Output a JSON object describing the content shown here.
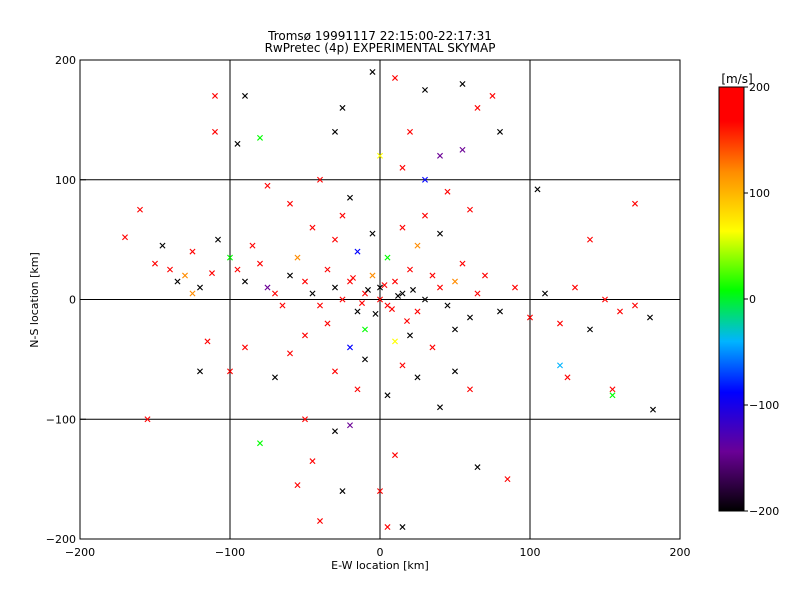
{
  "chart_data": {
    "type": "scatter",
    "title": "Tromsø 19991117 22:15:00-22:17:31",
    "subtitle": "RwPretec (4p) EXPERIMENTAL SKYMAP",
    "xlabel": "E-W location [km]",
    "ylabel": "N-S location [km]",
    "xlim": [
      -200,
      200
    ],
    "ylim": [
      -200,
      200
    ],
    "xticks": [
      -200,
      -100,
      0,
      100,
      200
    ],
    "yticks": [
      -200,
      -100,
      0,
      100,
      200
    ],
    "xtick_labels": [
      "−200",
      "−100",
      "0",
      "100",
      "200"
    ],
    "ytick_labels": [
      "−200",
      "−100",
      "0",
      "100",
      "200"
    ],
    "grid": true,
    "marker": "x",
    "colorbar": {
      "label": "[m/s]",
      "min": -200,
      "max": 200,
      "ticks": [
        -200,
        -100,
        0,
        100,
        200
      ],
      "tick_labels": [
        "−200",
        "−100",
        "0",
        "100",
        "200"
      ],
      "colors": [
        "#000000",
        "#6a0096",
        "#0000ff",
        "#00b4ff",
        "#00ff00",
        "#ffff00",
        "#ff8c00",
        "#ff0000"
      ]
    },
    "points": [
      {
        "x": -170,
        "y": 52,
        "v": 180
      },
      {
        "x": -160,
        "y": 75,
        "v": 190
      },
      {
        "x": -145,
        "y": 45,
        "v": -200
      },
      {
        "x": -150,
        "y": 30,
        "v": 180
      },
      {
        "x": -140,
        "y": 25,
        "v": 185
      },
      {
        "x": -135,
        "y": 15,
        "v": -190
      },
      {
        "x": -130,
        "y": 20,
        "v": 170
      },
      {
        "x": -125,
        "y": 40,
        "v": 175
      },
      {
        "x": -120,
        "y": 10,
        "v": -200
      },
      {
        "x": -112,
        "y": 22,
        "v": 180
      },
      {
        "x": -108,
        "y": 50,
        "v": -200
      },
      {
        "x": -100,
        "y": 35,
        "v": 20
      },
      {
        "x": -95,
        "y": 25,
        "v": 195
      },
      {
        "x": -90,
        "y": 15,
        "v": -200
      },
      {
        "x": -85,
        "y": 45,
        "v": 190
      },
      {
        "x": -80,
        "y": 30,
        "v": 180
      },
      {
        "x": -75,
        "y": 10,
        "v": -150
      },
      {
        "x": -70,
        "y": 5,
        "v": 190
      },
      {
        "x": -65,
        "y": -5,
        "v": 185
      },
      {
        "x": -60,
        "y": 20,
        "v": -200
      },
      {
        "x": -55,
        "y": 35,
        "v": 170
      },
      {
        "x": -50,
        "y": 15,
        "v": 180
      },
      {
        "x": -45,
        "y": 5,
        "v": -200
      },
      {
        "x": -40,
        "y": -5,
        "v": 190
      },
      {
        "x": -35,
        "y": 25,
        "v": 175
      },
      {
        "x": -30,
        "y": 10,
        "v": -200
      },
      {
        "x": -25,
        "y": 0,
        "v": 180
      },
      {
        "x": -20,
        "y": 15,
        "v": 195
      },
      {
        "x": -15,
        "y": -10,
        "v": -200
      },
      {
        "x": -10,
        "y": 5,
        "v": 185
      },
      {
        "x": -5,
        "y": 20,
        "v": 170
      },
      {
        "x": 0,
        "y": 10,
        "v": -200
      },
      {
        "x": 5,
        "y": -5,
        "v": 190
      },
      {
        "x": 10,
        "y": 15,
        "v": 180
      },
      {
        "x": 15,
        "y": 5,
        "v": -200
      },
      {
        "x": 20,
        "y": 25,
        "v": 175
      },
      {
        "x": 25,
        "y": -10,
        "v": 190
      },
      {
        "x": 30,
        "y": 0,
        "v": -200
      },
      {
        "x": 35,
        "y": 20,
        "v": 185
      },
      {
        "x": 40,
        "y": 10,
        "v": 180
      },
      {
        "x": 45,
        "y": -5,
        "v": -200
      },
      {
        "x": 50,
        "y": 15,
        "v": 170
      },
      {
        "x": 55,
        "y": 30,
        "v": 190
      },
      {
        "x": 60,
        "y": -15,
        "v": -200
      },
      {
        "x": 65,
        "y": 5,
        "v": 180
      },
      {
        "x": 70,
        "y": 20,
        "v": 195
      },
      {
        "x": 80,
        "y": -10,
        "v": -200
      },
      {
        "x": 90,
        "y": 10,
        "v": 185
      },
      {
        "x": 100,
        "y": -15,
        "v": 180
      },
      {
        "x": 110,
        "y": 5,
        "v": -200
      },
      {
        "x": 120,
        "y": -20,
        "v": 190
      },
      {
        "x": 130,
        "y": 10,
        "v": 175
      },
      {
        "x": 140,
        "y": -25,
        "v": -200
      },
      {
        "x": 150,
        "y": 0,
        "v": 180
      },
      {
        "x": 160,
        "y": -10,
        "v": 185
      },
      {
        "x": 170,
        "y": -5,
        "v": 190
      },
      {
        "x": 180,
        "y": -15,
        "v": -200
      },
      {
        "x": 182,
        "y": -92,
        "v": -200
      },
      {
        "x": 155,
        "y": -75,
        "v": 190
      },
      {
        "x": 155,
        "y": -80,
        "v": 0
      },
      {
        "x": 120,
        "y": -55,
        "v": -10
      },
      {
        "x": 125,
        "y": -65,
        "v": 185
      },
      {
        "x": 105,
        "y": 92,
        "v": -200
      },
      {
        "x": 140,
        "y": 50,
        "v": 180
      },
      {
        "x": 170,
        "y": 80,
        "v": 190
      },
      {
        "x": -125,
        "y": 5,
        "v": 120
      },
      {
        "x": -95,
        "y": 130,
        "v": -200
      },
      {
        "x": -90,
        "y": 170,
        "v": -200
      },
      {
        "x": -110,
        "y": 170,
        "v": 190
      },
      {
        "x": -80,
        "y": 135,
        "v": 30
      },
      {
        "x": -110,
        "y": 140,
        "v": 180
      },
      {
        "x": -75,
        "y": 95,
        "v": 185
      },
      {
        "x": -5,
        "y": 190,
        "v": -200
      },
      {
        "x": 10,
        "y": 185,
        "v": 180
      },
      {
        "x": 20,
        "y": 140,
        "v": 190
      },
      {
        "x": -25,
        "y": 160,
        "v": -200
      },
      {
        "x": -30,
        "y": 140,
        "v": -200
      },
      {
        "x": 30,
        "y": 175,
        "v": -200
      },
      {
        "x": 55,
        "y": 180,
        "v": -200
      },
      {
        "x": 65,
        "y": 160,
        "v": 180
      },
      {
        "x": 75,
        "y": 170,
        "v": 190
      },
      {
        "x": 80,
        "y": 140,
        "v": -200
      },
      {
        "x": 40,
        "y": 120,
        "v": -150
      },
      {
        "x": 55,
        "y": 125,
        "v": -120
      },
      {
        "x": 0,
        "y": 120,
        "v": 100
      },
      {
        "x": 15,
        "y": 110,
        "v": 185
      },
      {
        "x": 30,
        "y": 100,
        "v": -100
      },
      {
        "x": 45,
        "y": 90,
        "v": 180
      },
      {
        "x": 60,
        "y": 75,
        "v": 190
      },
      {
        "x": -40,
        "y": 100,
        "v": 175
      },
      {
        "x": -60,
        "y": 80,
        "v": 185
      },
      {
        "x": -20,
        "y": 85,
        "v": -200
      },
      {
        "x": -155,
        "y": -100,
        "v": 185
      },
      {
        "x": -80,
        "y": -120,
        "v": 30
      },
      {
        "x": -50,
        "y": -100,
        "v": 180
      },
      {
        "x": -30,
        "y": -110,
        "v": -200
      },
      {
        "x": -20,
        "y": -105,
        "v": -120
      },
      {
        "x": -45,
        "y": -135,
        "v": 185
      },
      {
        "x": -55,
        "y": -155,
        "v": 190
      },
      {
        "x": -40,
        "y": -185,
        "v": 180
      },
      {
        "x": -25,
        "y": -160,
        "v": -200
      },
      {
        "x": 5,
        "y": -190,
        "v": 180
      },
      {
        "x": 15,
        "y": -190,
        "v": -200
      },
      {
        "x": 0,
        "y": -160,
        "v": 185
      },
      {
        "x": 10,
        "y": -130,
        "v": 190
      },
      {
        "x": 65,
        "y": -140,
        "v": -200
      },
      {
        "x": 85,
        "y": -150,
        "v": 180
      },
      {
        "x": 40,
        "y": -90,
        "v": -200
      },
      {
        "x": 60,
        "y": -75,
        "v": 190
      },
      {
        "x": 50,
        "y": -60,
        "v": -200
      },
      {
        "x": -100,
        "y": -60,
        "v": 185
      },
      {
        "x": -115,
        "y": -35,
        "v": 180
      },
      {
        "x": -120,
        "y": -60,
        "v": -200
      },
      {
        "x": -90,
        "y": -40,
        "v": 190
      },
      {
        "x": -70,
        "y": -65,
        "v": -200
      },
      {
        "x": -60,
        "y": -45,
        "v": 180
      },
      {
        "x": -20,
        "y": -40,
        "v": -90
      },
      {
        "x": 10,
        "y": -35,
        "v": 100
      },
      {
        "x": -10,
        "y": -25,
        "v": 30
      },
      {
        "x": 20,
        "y": -30,
        "v": -200
      },
      {
        "x": -35,
        "y": -20,
        "v": 185
      },
      {
        "x": 35,
        "y": -40,
        "v": 190
      },
      {
        "x": -50,
        "y": -30,
        "v": 180
      },
      {
        "x": 50,
        "y": -25,
        "v": -200
      },
      {
        "x": 5,
        "y": 35,
        "v": 50
      },
      {
        "x": -15,
        "y": 40,
        "v": -80
      },
      {
        "x": 25,
        "y": 45,
        "v": 120
      },
      {
        "x": -30,
        "y": 50,
        "v": 185
      },
      {
        "x": 40,
        "y": 55,
        "v": -200
      },
      {
        "x": -45,
        "y": 60,
        "v": 180
      },
      {
        "x": 15,
        "y": 60,
        "v": 190
      },
      {
        "x": -5,
        "y": 55,
        "v": -200
      },
      {
        "x": 30,
        "y": 70,
        "v": 185
      },
      {
        "x": -25,
        "y": 70,
        "v": 180
      },
      {
        "x": -10,
        "y": -50,
        "v": -200
      },
      {
        "x": 15,
        "y": -55,
        "v": 185
      },
      {
        "x": -30,
        "y": -60,
        "v": 180
      },
      {
        "x": 25,
        "y": -65,
        "v": -200
      },
      {
        "x": -15,
        "y": -75,
        "v": 190
      },
      {
        "x": 5,
        "y": -80,
        "v": -200
      },
      {
        "x": 0,
        "y": 0,
        "v": 190
      },
      {
        "x": -8,
        "y": 8,
        "v": -200
      },
      {
        "x": 8,
        "y": -8,
        "v": 185
      },
      {
        "x": -12,
        "y": -3,
        "v": 180
      },
      {
        "x": 12,
        "y": 3,
        "v": -200
      },
      {
        "x": 3,
        "y": 12,
        "v": 175
      },
      {
        "x": -3,
        "y": -12,
        "v": -200
      },
      {
        "x": 18,
        "y": -18,
        "v": 190
      },
      {
        "x": -18,
        "y": 18,
        "v": 185
      },
      {
        "x": 22,
        "y": 8,
        "v": -200
      }
    ]
  }
}
